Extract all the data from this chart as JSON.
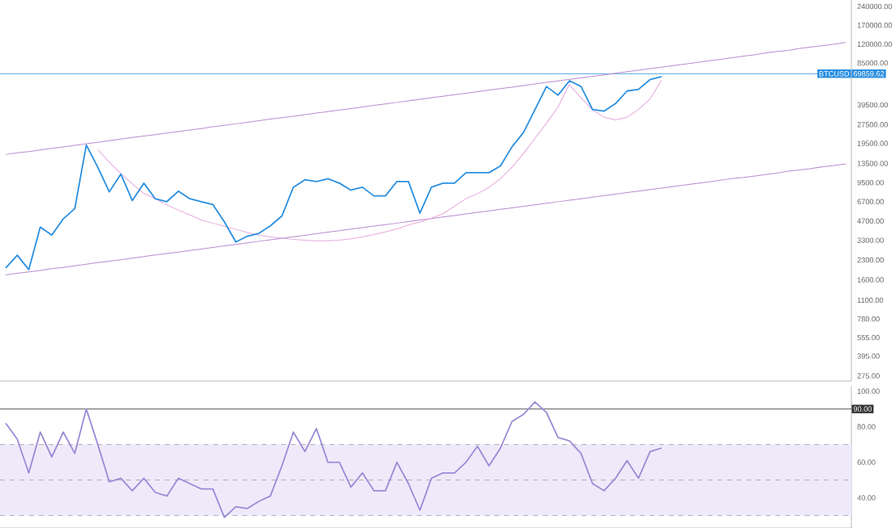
{
  "chart_data": [
    {
      "type": "line",
      "log": "y",
      "tick_labels": "y",
      "ylim": [
        250,
        270000
      ],
      "categories": [
        null,
        null,
        null,
        null,
        null,
        null,
        null,
        null,
        null,
        null,
        null,
        null,
        null,
        null,
        null,
        null,
        null,
        null,
        null,
        null,
        null,
        null,
        null,
        null,
        null,
        null,
        null,
        null,
        null,
        null,
        null,
        null,
        null,
        null,
        null,
        null,
        null,
        null,
        null,
        null,
        null,
        null,
        null,
        null,
        null,
        null,
        null,
        null,
        null,
        null,
        null,
        null,
        null,
        null,
        null,
        null,
        null,
        null,
        null,
        null,
        null,
        null,
        null,
        null,
        null,
        null,
        null,
        null,
        null,
        null,
        null,
        null,
        null,
        null
      ],
      "yticks": [
        {
          "value": 240000,
          "label": "240000.00"
        },
        {
          "value": 170000,
          "label": "170000.00"
        },
        {
          "value": 120000,
          "label": "120000.00"
        },
        {
          "value": 85000,
          "label": "85000.00"
        },
        {
          "value": 39500,
          "label": "39500.00"
        },
        {
          "value": 27500,
          "label": "27500.00"
        },
        {
          "value": 19500,
          "label": "19500.00"
        },
        {
          "value": 13500,
          "label": "13500.00"
        },
        {
          "value": 9500,
          "label": "9500.00"
        },
        {
          "value": 6700,
          "label": "6700.00"
        },
        {
          "value": 4700,
          "label": "4700.00"
        },
        {
          "value": 3300,
          "label": "3300.00"
        },
        {
          "value": 2300,
          "label": "2300.00"
        },
        {
          "value": 1600,
          "label": "1600.00"
        },
        {
          "value": 1100,
          "label": "1100.00"
        },
        {
          "value": 780,
          "label": "780.00"
        },
        {
          "value": 555,
          "label": "555.00"
        },
        {
          "value": 395,
          "label": "395.00"
        },
        {
          "value": 275,
          "label": "275.00"
        }
      ],
      "ref_lines": [
        {
          "axis": "y",
          "value": 69859.62,
          "label": "69859.62",
          "color": "#2a8fe0"
        }
      ],
      "annotations": [
        "BTCUSD"
      ],
      "series": [
        {
          "color": "#b98bd0",
          "values": [
            15900,
            16400,
            16800,
            17300,
            17800,
            18300,
            18800,
            19400,
            19900,
            20500,
            21100,
            21700,
            22300,
            22900,
            23600,
            24200,
            24900,
            25600,
            26400,
            27100,
            27900,
            28700,
            29500,
            30400,
            31200,
            32100,
            33000,
            34000,
            34900,
            35900,
            36900,
            38000,
            39100,
            40200,
            41300,
            42500,
            43700,
            45000,
            46300,
            47600,
            48900,
            50300,
            51800,
            53200,
            54700,
            56300,
            57900,
            59600,
            61300,
            63000,
            64800,
            66600,
            68500,
            70500,
            72500,
            74600,
            76700,
            78900,
            81100,
            83400,
            85800,
            88300,
            90800,
            93400,
            96000,
            98800,
            102000,
            105000,
            107000,
            111000,
            114000,
            117000,
            120000,
            124000
          ]
        },
        {
          "color": "#b98bd0",
          "values": [
            1750,
            1800,
            1850,
            1900,
            1960,
            2010,
            2070,
            2130,
            2190,
            2250,
            2310,
            2380,
            2450,
            2520,
            2590,
            2660,
            2740,
            2810,
            2890,
            2980,
            3060,
            3150,
            3240,
            3330,
            3420,
            3520,
            3620,
            3720,
            3830,
            3940,
            4050,
            4160,
            4280,
            4400,
            4520,
            4650,
            4790,
            4920,
            5060,
            5200,
            5350,
            5500,
            5660,
            5820,
            5980,
            6150,
            6320,
            6500,
            6690,
            6880,
            7070,
            7270,
            7480,
            7690,
            7910,
            8130,
            8360,
            8600,
            8840,
            9090,
            9350,
            9610,
            9880,
            10200,
            10400,
            10700,
            11000,
            11300,
            11700,
            12000,
            12300,
            12700,
            13000,
            13400
          ]
        },
        {
          "color": "#e6a9dc",
          "values": [
            null,
            null,
            null,
            null,
            null,
            null,
            null,
            null,
            17400,
            13800,
            11200,
            9300,
            7800,
            7080,
            6310,
            5750,
            5250,
            4790,
            4520,
            4270,
            4030,
            3800,
            3630,
            3510,
            3430,
            3350,
            3310,
            3270,
            3270,
            3310,
            3390,
            3510,
            3670,
            3850,
            4070,
            4370,
            4620,
            4950,
            5370,
            6170,
            7080,
            7760,
            8710,
            10200,
            12600,
            16200,
            21400,
            28200,
            38000,
            58000,
            null,
            null,
            null,
            null,
            null,
            null,
            null,
            null,
            null,
            null,
            null,
            null,
            null,
            null,
            null,
            null,
            null,
            null,
            null,
            null,
            null,
            null,
            null,
            null
          ]
        },
        {
          "color": "#e6a9dc",
          "values": [
            null,
            null,
            null,
            null,
            null,
            null,
            null,
            null,
            null,
            null,
            null,
            null,
            null,
            null,
            null,
            null,
            null,
            null,
            null,
            null,
            null,
            null,
            null,
            null,
            null,
            null,
            null,
            null,
            null,
            null,
            null,
            null,
            null,
            null,
            null,
            null,
            null,
            null,
            null,
            null,
            null,
            null,
            null,
            null,
            null,
            null,
            null,
            null,
            null,
            57000,
            45000,
            36000,
            31500,
            30000,
            31500,
            36300,
            44000,
            62000,
            null,
            null,
            null,
            null,
            null,
            null,
            null,
            null,
            null,
            null,
            null,
            null,
            null,
            null,
            null,
            null
          ]
        },
        {
          "color": "#2a8fe0",
          "values": [
            1990,
            2510,
            1930,
            4200,
            3630,
            4890,
            5900,
            18900,
            12600,
            8020,
            11100,
            6840,
            9400,
            7060,
            6700,
            8110,
            7060,
            6700,
            6360,
            4630,
            3200,
            3560,
            3750,
            4300,
            5150,
            8730,
            10000,
            9700,
            10200,
            9400,
            8280,
            8730,
            7450,
            7450,
            9700,
            9700,
            5430,
            8730,
            9400,
            9400,
            11400,
            11400,
            11400,
            12900,
            18300,
            23800,
            36300,
            55300,
            47200,
            61500,
            55300,
            36300,
            35200,
            40400,
            50900,
            52500,
            62800,
            66200,
            null,
            null,
            null,
            null,
            null,
            null,
            null,
            null,
            null,
            null,
            null,
            null,
            null,
            null,
            null,
            null
          ]
        }
      ]
    },
    {
      "type": "line",
      "tick_labels": "y",
      "ylim": [
        23,
        103
      ],
      "categories": [
        null,
        null,
        null,
        null,
        null,
        null,
        null,
        null,
        null,
        null,
        null,
        null,
        null,
        null,
        null,
        null,
        null,
        null,
        null,
        null,
        null,
        null,
        null,
        null,
        null,
        null,
        null,
        null,
        null,
        null,
        null,
        null,
        null,
        null,
        null,
        null,
        null,
        null,
        null,
        null,
        null,
        null,
        null,
        null,
        null,
        null,
        null,
        null,
        null,
        null,
        null,
        null,
        null,
        null,
        null,
        null,
        null,
        null,
        null,
        null,
        null,
        null,
        null,
        null,
        null,
        null,
        null,
        null,
        null,
        null,
        null,
        null,
        null,
        null
      ],
      "yticks": [
        {
          "value": 100,
          "label": "100.00"
        },
        {
          "value": 80,
          "label": "80.00"
        },
        {
          "value": 60,
          "label": "60.00"
        },
        {
          "value": 40,
          "label": "40.00"
        }
      ],
      "bands": [
        {
          "axis": "y",
          "from": 30,
          "to": 70,
          "color": "#efeafa"
        }
      ],
      "ref_lines": [
        {
          "axis": "y",
          "value": 90,
          "label": "90.00",
          "color": "#333333"
        },
        {
          "axis": "y",
          "value": 70,
          "color": "#9a9a9a",
          "line_style": "dashed"
        },
        {
          "axis": "y",
          "value": 50,
          "color": "#9a9a9a",
          "line_style": "dashed"
        },
        {
          "axis": "y",
          "value": 30,
          "color": "#9a9a9a",
          "line_style": "dashed"
        }
      ],
      "series": [
        {
          "color": "#9b8ad6",
          "values": [
            82,
            73,
            54,
            77,
            63,
            77,
            65,
            90,
            70,
            49,
            51,
            44,
            51,
            43,
            41,
            51,
            48,
            45,
            45,
            29,
            35,
            34,
            38,
            41,
            58,
            77,
            66,
            79,
            60,
            60,
            46,
            54,
            44,
            44,
            60,
            48,
            33,
            51,
            54,
            54,
            60,
            69,
            58,
            68,
            83,
            87,
            94,
            88,
            74,
            72,
            65,
            48,
            44,
            51,
            61,
            51,
            66,
            68,
            null,
            null,
            null,
            null,
            null,
            null,
            null,
            null,
            null,
            null,
            null,
            null,
            null,
            null,
            null,
            null
          ]
        }
      ]
    }
  ]
}
